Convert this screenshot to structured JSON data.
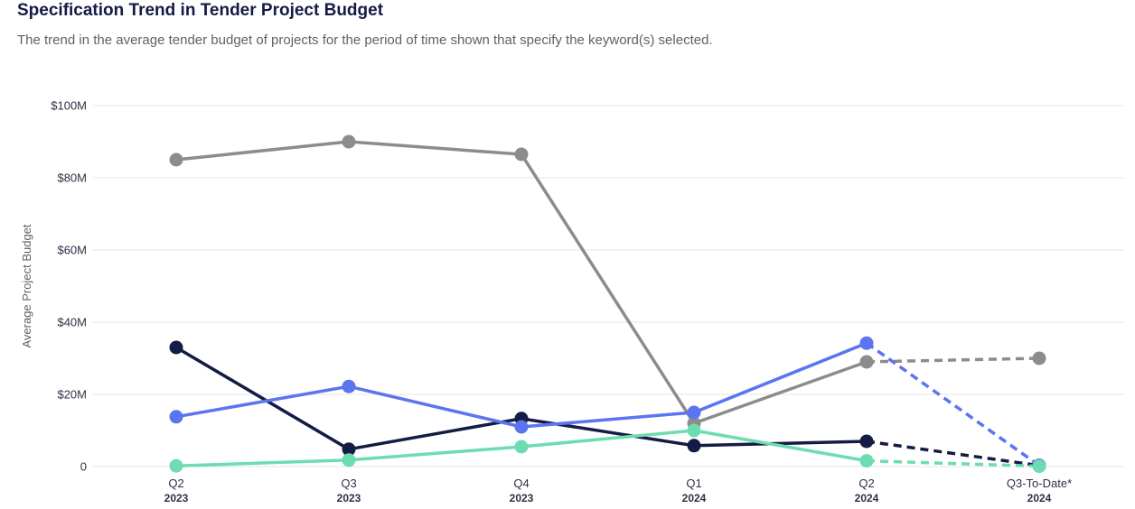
{
  "header": {
    "title": "Specification Trend in Tender Project Budget",
    "subtitle": "The trend in the average tender budget of projects for the period of time shown that specify the keyword(s) selected."
  },
  "chart_data": {
    "type": "line",
    "title": "Specification Trend in Tender Project Budget",
    "ylabel": "Average Project Budget",
    "xlabel": "",
    "ylim": [
      0,
      100
    ],
    "y_unit": "$M",
    "y_ticks": [
      {
        "value": 0,
        "label": "0"
      },
      {
        "value": 20,
        "label": "$20M"
      },
      {
        "value": 40,
        "label": "$40M"
      },
      {
        "value": 60,
        "label": "$60M"
      },
      {
        "value": 80,
        "label": "$80M"
      },
      {
        "value": 100,
        "label": "$100M"
      }
    ],
    "grid": true,
    "legend": "none",
    "categories": [
      {
        "label": "Q2",
        "sub": "2023"
      },
      {
        "label": "Q3",
        "sub": "2023"
      },
      {
        "label": "Q4",
        "sub": "2023"
      },
      {
        "label": "Q1",
        "sub": "2024"
      },
      {
        "label": "Q2",
        "sub": "2024"
      },
      {
        "label": "Q3-To-Date*",
        "sub": "2024"
      }
    ],
    "dashed_from_index": 4,
    "series": [
      {
        "color": "#8c8c8c",
        "values": [
          85,
          90,
          86.5,
          12,
          29,
          30
        ]
      },
      {
        "color": "#141b44",
        "values": [
          33,
          4.8,
          13.3,
          5.8,
          7,
          0.3
        ]
      },
      {
        "color": "#5b74f0",
        "values": [
          13.8,
          22.2,
          11,
          15,
          34.2,
          0.3
        ]
      },
      {
        "color": "#6ddcb0",
        "values": [
          0.2,
          1.8,
          5.5,
          10,
          1.6,
          0.1
        ]
      }
    ]
  }
}
